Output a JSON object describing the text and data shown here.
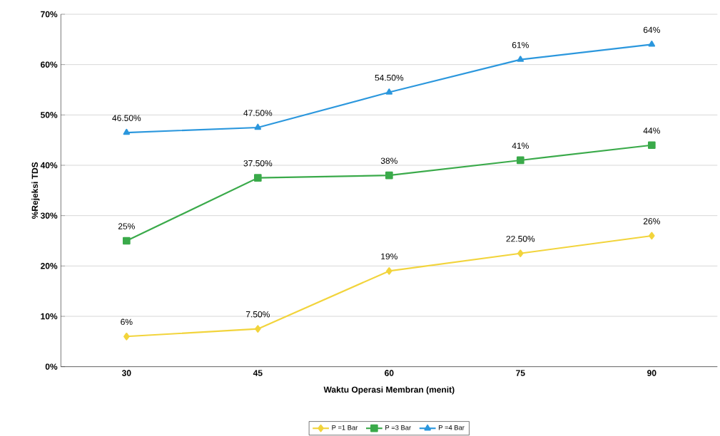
{
  "chart_data": {
    "type": "line",
    "xlabel": "Waktu Operasi Membran (menit)",
    "ylabel": "%Rejeksi TDS",
    "categories": [
      "30",
      "45",
      "60",
      "75",
      "90"
    ],
    "series": [
      {
        "name": "P =1 Bar",
        "color": "#f2d43c",
        "marker": "diamond",
        "values": [
          6,
          7.5,
          19,
          22.5,
          26
        ],
        "value_labels": [
          "6%",
          "7.50%",
          "19%",
          "22.50%",
          "26%"
        ]
      },
      {
        "name": "P =3 Bar",
        "color": "#3aaa4a",
        "marker": "square",
        "values": [
          25,
          37.5,
          38,
          41,
          44
        ],
        "value_labels": [
          "25%",
          "37.50%",
          "38%",
          "41%",
          "44%"
        ]
      },
      {
        "name": "P =4 Bar",
        "color": "#2b97dd",
        "marker": "triangle",
        "values": [
          46.5,
          47.5,
          54.5,
          61,
          64
        ],
        "value_labels": [
          "46.50%",
          "47.50%",
          "54.50%",
          "61%",
          "64%"
        ]
      }
    ],
    "ylim": [
      0,
      70
    ],
    "yticks": [
      {
        "value": 0,
        "label": "0%"
      },
      {
        "value": 10,
        "label": "10%"
      },
      {
        "value": 20,
        "label": "20%"
      },
      {
        "value": 30,
        "label": "30%"
      },
      {
        "value": 40,
        "label": "40%"
      },
      {
        "value": 50,
        "label": "50%"
      },
      {
        "value": 60,
        "label": "60%"
      },
      {
        "value": 70,
        "label": "70%"
      }
    ],
    "grid": "y",
    "legend": "bottom",
    "line_style": "solid"
  }
}
